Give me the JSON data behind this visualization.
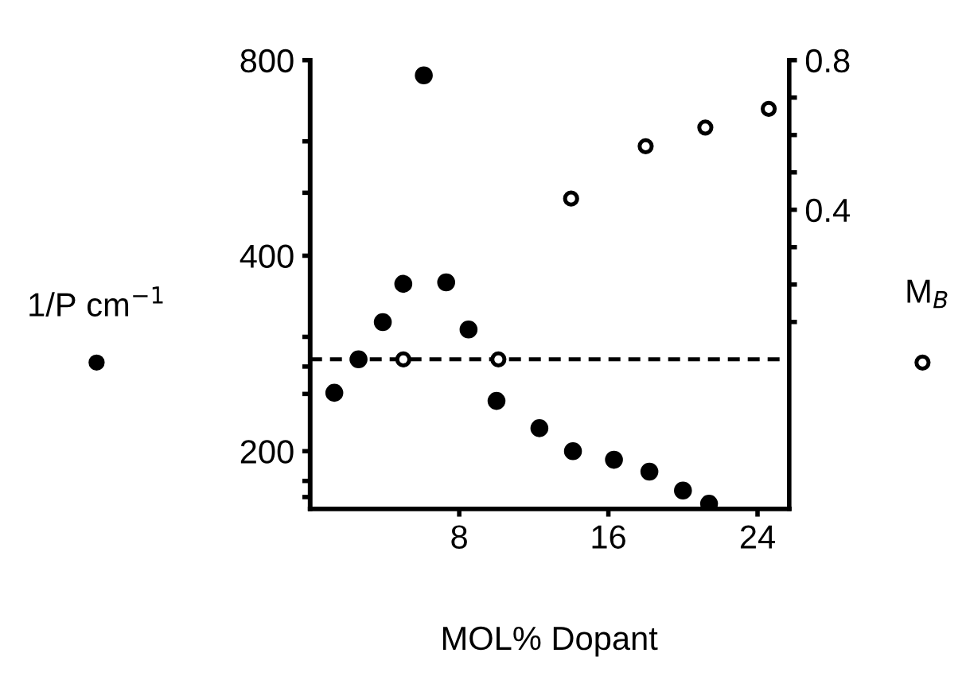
{
  "chart_data": {
    "type": "scatter",
    "xlabel": "MOL% Dopant",
    "ylabel": "1/P cm$^{−1}$",
    "y2label": "M$_{B}$",
    "log": "y",
    "grid": false,
    "xlim": [
      0,
      25.7
    ],
    "xticks": [
      8,
      16,
      24
    ],
    "ylim": [
      163,
      800
    ],
    "yticks": [
      800,
      {
        "value": 600,
        "label": null
      },
      {
        "value": 500,
        "label": null
      },
      400,
      {
        "value": 300,
        "label": null
      },
      {
        "value": 270,
        "label": null
      },
      {
        "value": 245,
        "label": null
      },
      200,
      {
        "value": 180,
        "label": null
      },
      {
        "value": 170,
        "label": null
      }
    ],
    "y2lim": [
      -0.4,
      0.8
    ],
    "y2ticks": [
      0.8,
      {
        "value": 0.7,
        "label": null
      },
      {
        "value": 0.6,
        "label": null
      },
      {
        "value": 0.5,
        "label": null
      },
      0.4,
      {
        "value": 0.3,
        "label": null
      },
      {
        "value": 0.2,
        "label": null
      },
      {
        "value": 0.1,
        "label": null
      }
    ],
    "ref_lines": [
      {
        "axis": "y2",
        "value": 0,
        "color": "#000000",
        "line_style": "dashed"
      }
    ],
    "series": [
      {
        "color": "#000000",
        "marker": "circle",
        "x": [
          1.3,
          2.6,
          3.9,
          5.0,
          6.1,
          7.3,
          8.5,
          10.0,
          12.3,
          14.1,
          16.3,
          18.2,
          20.0,
          21.4
        ],
        "values": [
          246,
          277,
          316,
          362,
          758,
          364,
          308,
          239,
          217,
          200,
          194,
          186,
          174,
          166
        ]
      },
      {
        "color": "#000000",
        "marker": "circle",
        "axis": "y2",
        "x": [
          5.0,
          10.1,
          14.0,
          18.0,
          21.2,
          24.6
        ],
        "values": [
          0,
          0,
          0.43,
          0.57,
          0.62,
          0.67
        ]
      }
    ]
  }
}
